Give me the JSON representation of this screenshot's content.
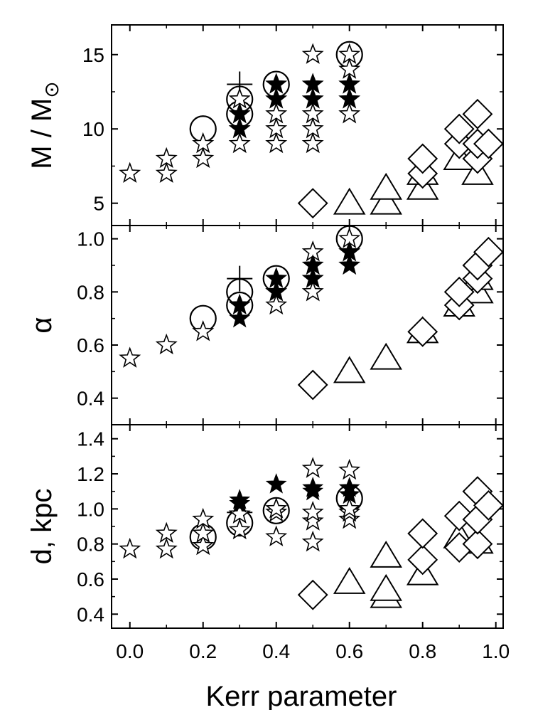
{
  "chart_data": {
    "type": "scatter",
    "xlabel": "Kerr parameter",
    "xlim": [
      -0.05,
      1.02
    ],
    "xticks": [
      "0.0",
      "0.2",
      "0.4",
      "0.6",
      "0.8",
      "1.0"
    ],
    "panels": [
      {
        "ylabel": "M / M",
        "ylabel_symbol": "⊙",
        "ylim": [
          3.5,
          17
        ],
        "yticks": [
          "5",
          "10",
          "15"
        ],
        "series": [
          {
            "marker": "star-open",
            "points": [
              [
                0.0,
                7
              ],
              [
                0.1,
                7
              ],
              [
                0.1,
                8
              ],
              [
                0.2,
                8
              ],
              [
                0.2,
                9
              ],
              [
                0.3,
                9
              ],
              [
                0.3,
                10
              ],
              [
                0.3,
                11
              ],
              [
                0.3,
                12
              ],
              [
                0.4,
                9
              ],
              [
                0.4,
                10
              ],
              [
                0.4,
                11
              ],
              [
                0.4,
                12
              ],
              [
                0.4,
                13
              ],
              [
                0.5,
                9
              ],
              [
                0.5,
                10
              ],
              [
                0.5,
                11
              ],
              [
                0.5,
                12
              ],
              [
                0.5,
                13
              ],
              [
                0.5,
                15
              ],
              [
                0.6,
                11
              ],
              [
                0.6,
                12
              ],
              [
                0.6,
                13
              ],
              [
                0.6,
                14
              ],
              [
                0.6,
                15
              ]
            ]
          },
          {
            "marker": "star-filled",
            "points": [
              [
                0.3,
                10
              ],
              [
                0.3,
                11
              ],
              [
                0.4,
                12
              ],
              [
                0.4,
                13
              ],
              [
                0.5,
                12
              ],
              [
                0.5,
                13
              ],
              [
                0.6,
                12
              ],
              [
                0.6,
                13
              ]
            ]
          },
          {
            "marker": "circle",
            "points": [
              [
                0.2,
                10
              ],
              [
                0.3,
                11
              ],
              [
                0.3,
                12
              ],
              [
                0.4,
                13
              ],
              [
                0.6,
                15
              ]
            ]
          },
          {
            "marker": "plus",
            "points": [
              [
                0.3,
                13
              ]
            ]
          },
          {
            "marker": "triangle",
            "points": [
              [
                0.6,
                5
              ],
              [
                0.7,
                5
              ],
              [
                0.7,
                6
              ],
              [
                0.8,
                6
              ],
              [
                0.8,
                7
              ],
              [
                0.9,
                8
              ],
              [
                0.95,
                7
              ]
            ]
          },
          {
            "marker": "diamond",
            "points": [
              [
                0.5,
                5
              ],
              [
                0.8,
                7
              ],
              [
                0.8,
                8
              ],
              [
                0.9,
                9
              ],
              [
                0.9,
                10
              ],
              [
                0.95,
                8
              ],
              [
                0.95,
                9
              ],
              [
                0.95,
                11
              ],
              [
                0.98,
                9
              ]
            ]
          }
        ]
      },
      {
        "ylabel": "α",
        "ylim": [
          0.3,
          1.05
        ],
        "yticks": [
          "0.4",
          "0.6",
          "0.8",
          "1.0"
        ],
        "series": [
          {
            "marker": "star-open",
            "points": [
              [
                0.0,
                0.55
              ],
              [
                0.1,
                0.6
              ],
              [
                0.2,
                0.65
              ],
              [
                0.3,
                0.75
              ],
              [
                0.4,
                0.75
              ],
              [
                0.4,
                0.8
              ],
              [
                0.4,
                0.85
              ],
              [
                0.5,
                0.8
              ],
              [
                0.5,
                0.85
              ],
              [
                0.5,
                0.9
              ],
              [
                0.5,
                0.95
              ],
              [
                0.6,
                0.9
              ],
              [
                0.6,
                0.95
              ],
              [
                0.6,
                1.0
              ]
            ]
          },
          {
            "marker": "star-filled",
            "points": [
              [
                0.3,
                0.7
              ],
              [
                0.3,
                0.75
              ],
              [
                0.4,
                0.8
              ],
              [
                0.4,
                0.85
              ],
              [
                0.5,
                0.85
              ],
              [
                0.5,
                0.9
              ],
              [
                0.6,
                0.9
              ],
              [
                0.6,
                0.95
              ]
            ]
          },
          {
            "marker": "circle",
            "points": [
              [
                0.2,
                0.7
              ],
              [
                0.3,
                0.75
              ],
              [
                0.3,
                0.8
              ],
              [
                0.4,
                0.85
              ],
              [
                0.6,
                1.0
              ]
            ]
          },
          {
            "marker": "plus",
            "points": [
              [
                0.3,
                0.85
              ]
            ]
          },
          {
            "marker": "triangle",
            "points": [
              [
                0.6,
                0.5
              ],
              [
                0.7,
                0.55
              ],
              [
                0.8,
                0.65
              ],
              [
                0.9,
                0.75
              ],
              [
                0.95,
                0.8
              ],
              [
                0.95,
                0.85
              ]
            ]
          },
          {
            "marker": "diamond",
            "points": [
              [
                0.5,
                0.45
              ],
              [
                0.8,
                0.65
              ],
              [
                0.9,
                0.75
              ],
              [
                0.9,
                0.8
              ],
              [
                0.95,
                0.85
              ],
              [
                0.95,
                0.9
              ],
              [
                0.98,
                0.95
              ]
            ]
          }
        ]
      },
      {
        "ylabel": "d,  kpc",
        "ylim": [
          0.32,
          1.48
        ],
        "yticks": [
          "0.4",
          "0.6",
          "0.8",
          "1.0",
          "1.2",
          "1.4"
        ],
        "series": [
          {
            "marker": "star-open",
            "points": [
              [
                0.0,
                0.77
              ],
              [
                0.1,
                0.77
              ],
              [
                0.1,
                0.86
              ],
              [
                0.2,
                0.79
              ],
              [
                0.2,
                0.86
              ],
              [
                0.2,
                0.94
              ],
              [
                0.3,
                0.88
              ],
              [
                0.3,
                0.97
              ],
              [
                0.4,
                0.84
              ],
              [
                0.4,
                0.98
              ],
              [
                0.4,
                1.0
              ],
              [
                0.5,
                0.81
              ],
              [
                0.5,
                0.93
              ],
              [
                0.5,
                0.98
              ],
              [
                0.5,
                1.23
              ],
              [
                0.6,
                0.94
              ],
              [
                0.6,
                0.98
              ],
              [
                0.6,
                1.0
              ],
              [
                0.6,
                1.22
              ]
            ]
          },
          {
            "marker": "star-filled",
            "points": [
              [
                0.3,
                1.03
              ],
              [
                0.3,
                1.05
              ],
              [
                0.4,
                1.14
              ],
              [
                0.5,
                1.1
              ],
              [
                0.5,
                1.12
              ],
              [
                0.6,
                1.08
              ],
              [
                0.6,
                1.12
              ]
            ]
          },
          {
            "marker": "circle",
            "points": [
              [
                0.2,
                0.84
              ],
              [
                0.3,
                0.92
              ],
              [
                0.4,
                0.99
              ],
              [
                0.6,
                1.06
              ]
            ]
          },
          {
            "marker": "plus",
            "points": [
              [
                0.3,
                0.98
              ]
            ]
          },
          {
            "marker": "triangle",
            "points": [
              [
                0.6,
                0.58
              ],
              [
                0.7,
                0.5
              ],
              [
                0.7,
                0.54
              ],
              [
                0.7,
                0.73
              ],
              [
                0.8,
                0.63
              ],
              [
                0.9,
                0.84
              ],
              [
                0.95,
                0.81
              ]
            ]
          },
          {
            "marker": "diamond",
            "points": [
              [
                0.5,
                0.51
              ],
              [
                0.8,
                0.71
              ],
              [
                0.8,
                0.86
              ],
              [
                0.9,
                0.78
              ],
              [
                0.9,
                0.96
              ],
              [
                0.95,
                0.8
              ],
              [
                0.95,
                0.94
              ],
              [
                0.95,
                1.1
              ],
              [
                0.98,
                1.02
              ]
            ]
          }
        ]
      }
    ]
  }
}
